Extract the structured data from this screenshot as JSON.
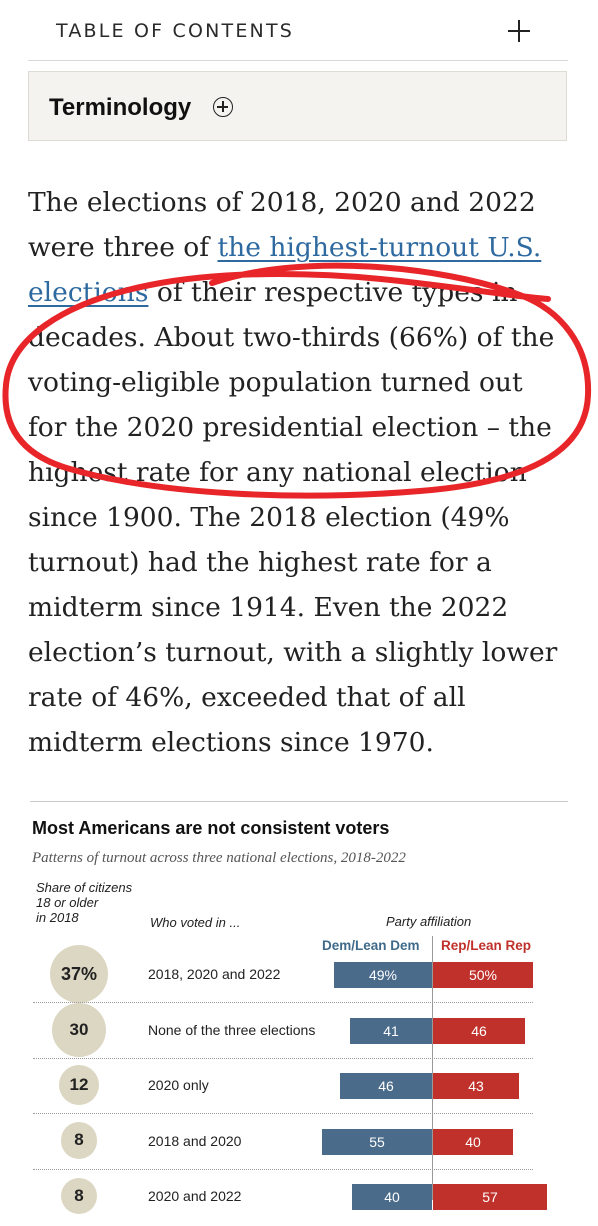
{
  "toc": {
    "label": "TABLE OF CONTENTS"
  },
  "terminology": {
    "label": "Terminology"
  },
  "paragraph": {
    "lines": [
      "The elections of 2018, 2020 and 2022",
      "were three of ",
      "the highest-turnout U.S.",
      "elections",
      " of their respective types in",
      "decades. About two-thirds (66%) of the",
      "voting-eligible population turned out",
      "for the 2020 presidential election – the",
      "highest rate for any national election",
      "since 1900. The 2018 election (49%",
      "turnout) had the highest rate for a",
      "midterm since 1914. Even the 2022",
      "election’s turnout, with a slightly lower",
      "rate of 46%, exceeded that of all",
      "midterm elections since 1970."
    ]
  },
  "annotation": {
    "color": "#e8262a"
  },
  "chart_data": {
    "type": "table",
    "title": "Most Americans are not consistent voters",
    "subtitle": "Patterns of turnout across three national elections, 2018-2022",
    "columns": {
      "share": [
        "Share of citizens",
        "18 or older",
        "in 2018"
      ],
      "who": "Who voted in ...",
      "party": "Party affiliation",
      "dem": "Dem/Lean Dem",
      "rep": "Rep/Lean Rep"
    },
    "colors": {
      "dem": "#4a6b8a",
      "rep": "#c0312b",
      "circle": "#dcd7c2"
    },
    "rows": [
      {
        "share": 37,
        "share_label": "37%",
        "who": "2018, 2020 and 2022",
        "dem": 49,
        "dem_label": "49%",
        "rep": 50,
        "rep_label": "50%"
      },
      {
        "share": 30,
        "share_label": "30",
        "who": "None of the three elections",
        "dem": 41,
        "dem_label": "41",
        "rep": 46,
        "rep_label": "46"
      },
      {
        "share": 12,
        "share_label": "12",
        "who": "2020 only",
        "dem": 46,
        "dem_label": "46",
        "rep": 43,
        "rep_label": "43"
      },
      {
        "share": 8,
        "share_label": "8",
        "who": "2018 and 2020",
        "dem": 55,
        "dem_label": "55",
        "rep": 40,
        "rep_label": "40"
      },
      {
        "share": 8,
        "share_label": "8",
        "who": "2020 and 2022",
        "dem": 40,
        "dem_label": "40",
        "rep": 57,
        "rep_label": "57"
      }
    ]
  }
}
